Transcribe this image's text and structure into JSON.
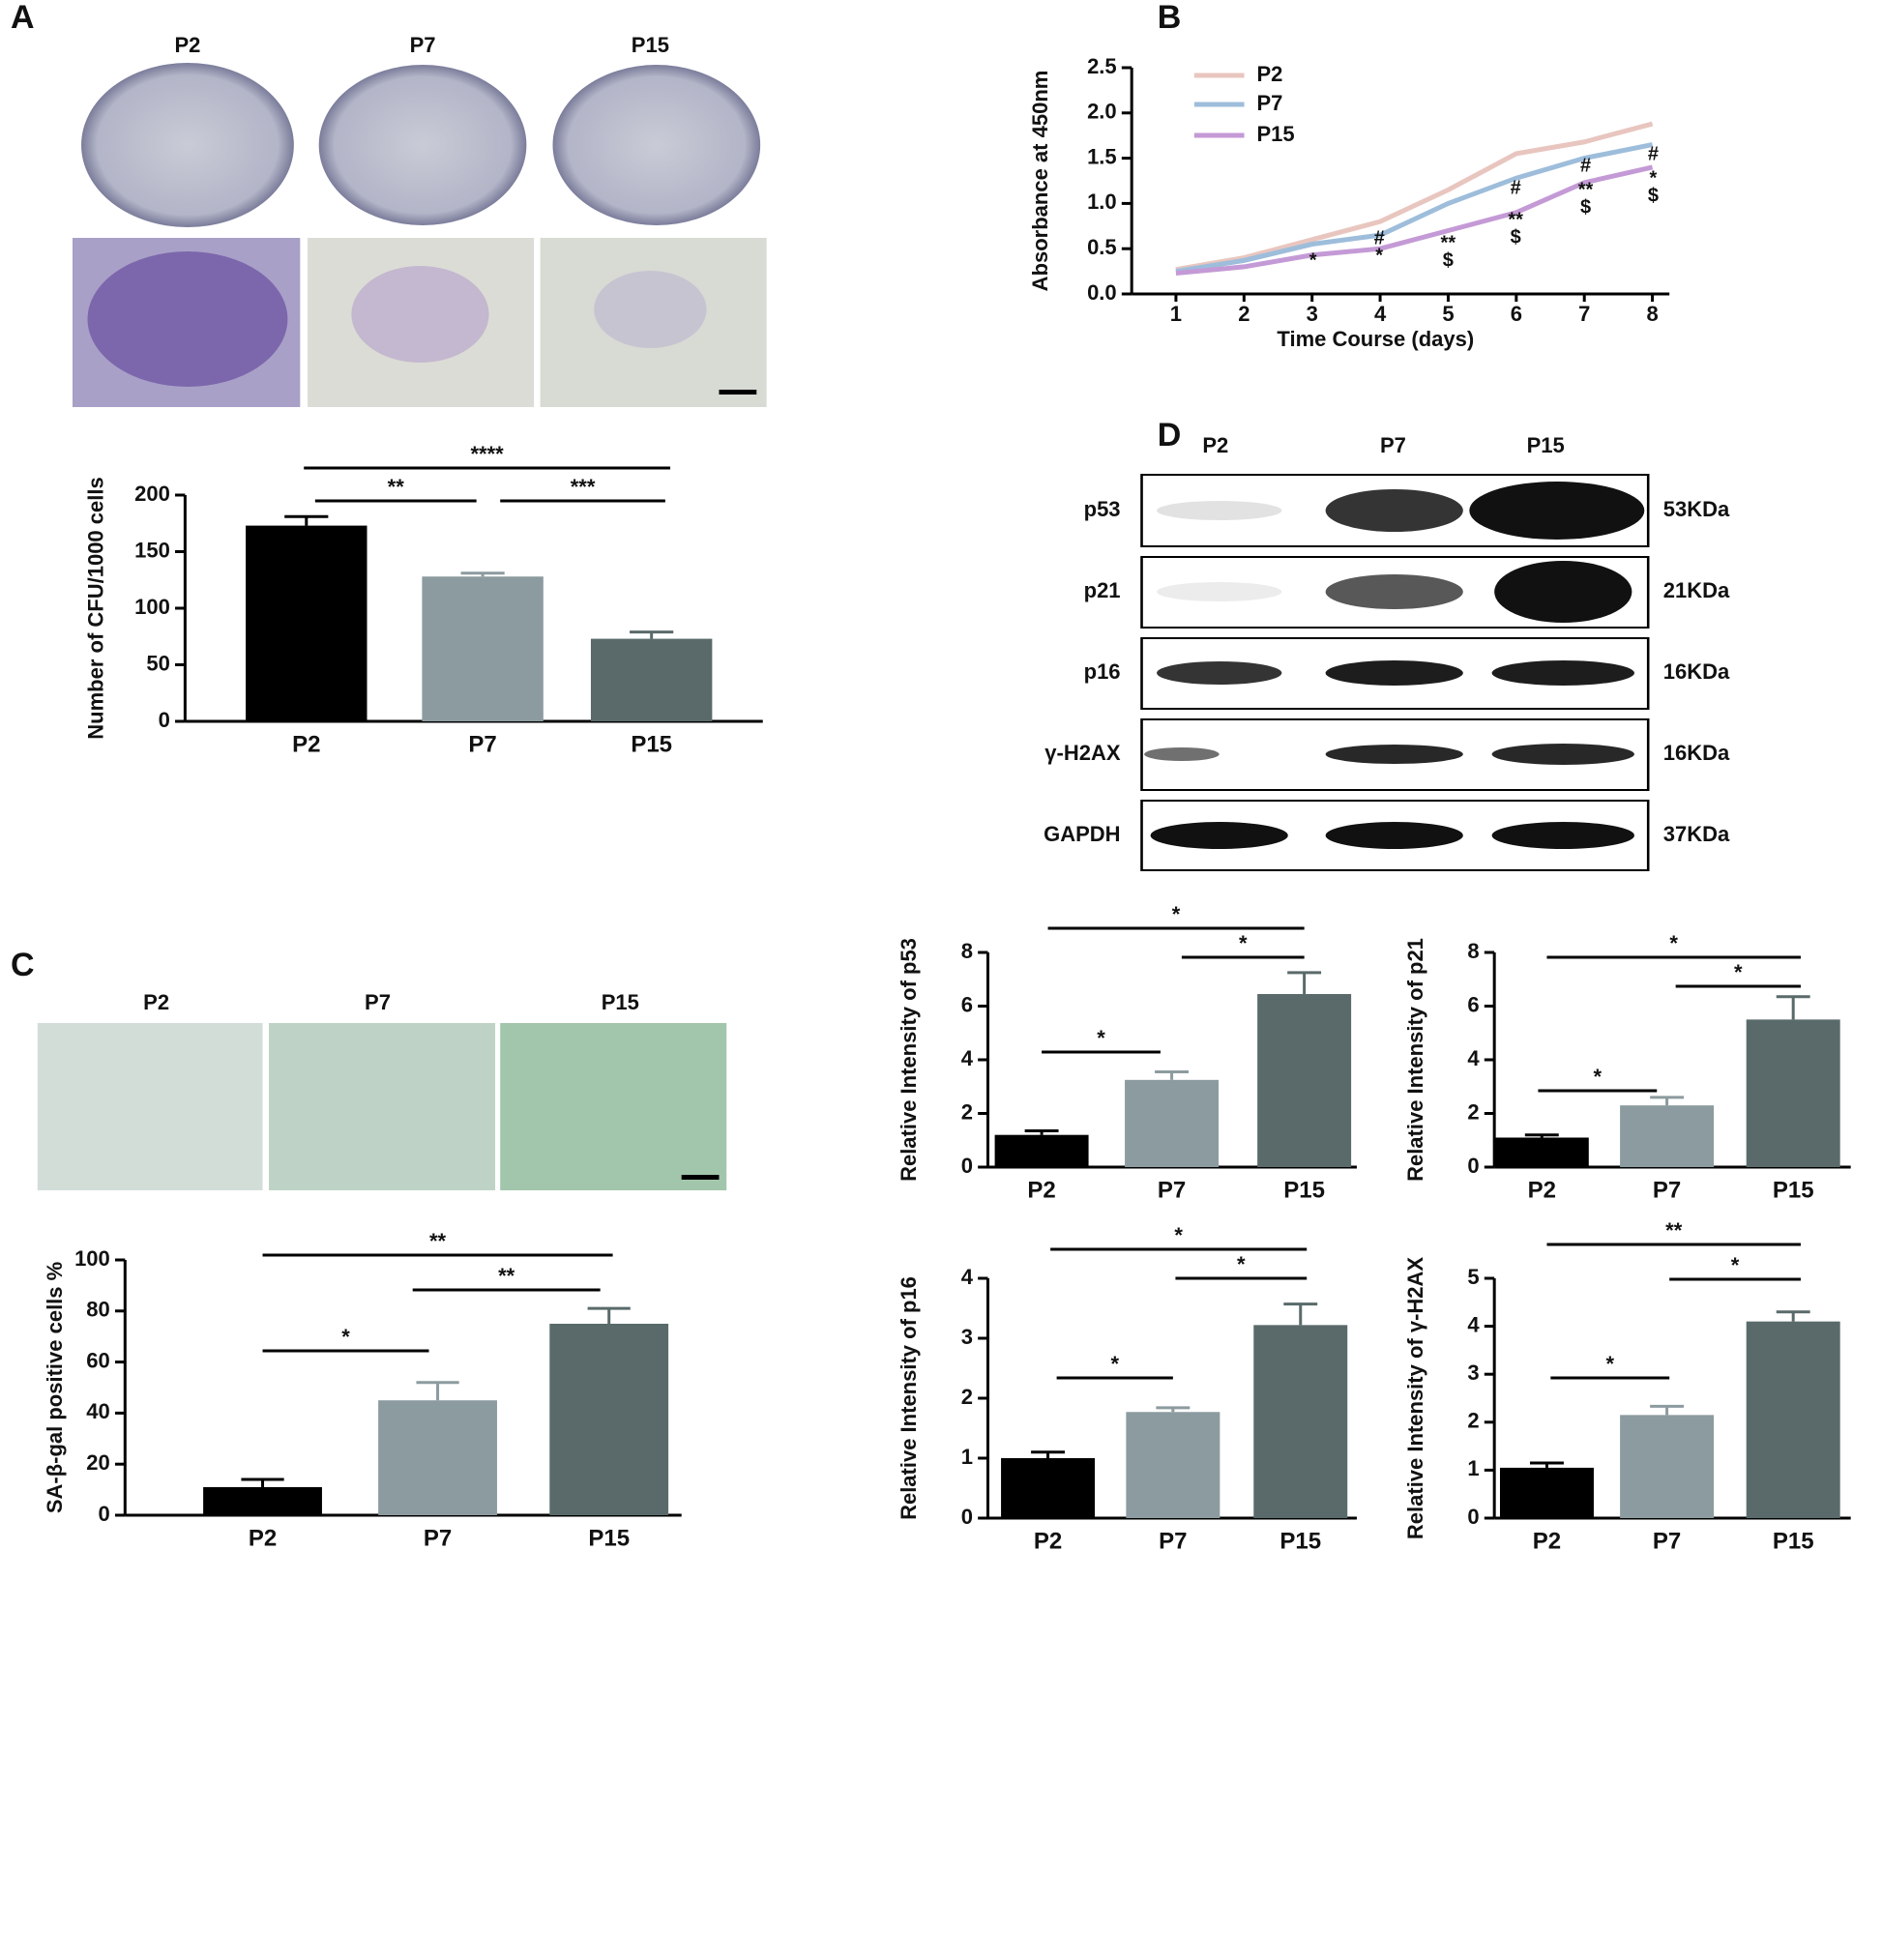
{
  "panel_labels": [
    "A",
    "B",
    "C",
    "D"
  ],
  "colony_images": {
    "labels": [
      "P2",
      "P7",
      "P15"
    ]
  },
  "sa_gal_images": {
    "labels": [
      "P2",
      "P7",
      "P15"
    ]
  },
  "western_blot": {
    "lanes": [
      "P2",
      "P7",
      "P15"
    ],
    "proteins": [
      {
        "name": "p53",
        "size": "53KDa"
      },
      {
        "name": "p21",
        "size": "21KDa"
      },
      {
        "name": "p16",
        "size": "16KDa"
      },
      {
        "name": "γ-H2AX",
        "size": "16KDa"
      },
      {
        "name": "GAPDH",
        "size": "37KDa"
      }
    ]
  },
  "chart_data": [
    {
      "type": "bar",
      "ylabel": "Number of CFU/1000 cells",
      "categories": [
        "P2",
        "P7",
        "P15"
      ],
      "values": [
        173,
        128,
        73
      ],
      "errors": [
        8,
        3,
        6
      ],
      "colors": [
        "#000000",
        "#8c9b9f",
        "#5a6a6a"
      ],
      "ylim": [
        0,
        200
      ],
      "yticks": [
        0,
        50,
        100,
        150,
        200
      ],
      "annotations": [
        "****",
        "**",
        "***"
      ]
    },
    {
      "type": "line",
      "xlabel": "Time Course (days)",
      "ylabel": "Absorbance at 450nm",
      "x": [
        1,
        2,
        3,
        4,
        5,
        6,
        7,
        8
      ],
      "xlim": [
        0.35,
        8.25
      ],
      "xticks": [
        1,
        2,
        3,
        4,
        5,
        6,
        7,
        8
      ],
      "ylim": [
        0,
        2.5
      ],
      "yticks": [
        {
          "value": 0,
          "label": "0.0"
        },
        0.5,
        {
          "value": 1,
          "label": "1.0"
        },
        1.5,
        {
          "value": 2,
          "label": "2.0"
        },
        2.5
      ],
      "series": [
        {
          "name": "P2",
          "color": "#e8c6bf",
          "values": [
            0.27,
            0.4,
            0.6,
            0.8,
            1.15,
            1.55,
            1.68,
            1.88
          ]
        },
        {
          "name": "P7",
          "color": "#9dbddb",
          "values": [
            0.25,
            0.37,
            0.55,
            0.65,
            1.0,
            1.28,
            1.5,
            1.65
          ]
        },
        {
          "name": "P15",
          "color": "#c49ad6",
          "values": [
            0.23,
            0.3,
            0.43,
            0.5,
            0.7,
            0.9,
            1.23,
            1.4
          ]
        }
      ],
      "annotations": [
        "*",
        "#",
        "*",
        "**",
        "$",
        "#",
        "**",
        "$",
        "#",
        "**",
        "$",
        "#",
        "*",
        "$"
      ]
    },
    {
      "type": "bar",
      "ylabel": "SA-β-gal positive cells %",
      "categories": [
        "P2",
        "P7",
        "P15"
      ],
      "values": [
        11,
        45,
        75
      ],
      "errors": [
        3,
        7,
        6
      ],
      "colors": [
        "#000000",
        "#8c9b9f",
        "#5a6a6a"
      ],
      "ylim": [
        0,
        100
      ],
      "yticks": [
        0,
        20,
        40,
        60,
        80,
        100
      ],
      "annotations": [
        "**",
        "**",
        "*"
      ]
    },
    {
      "type": "bar",
      "ylabel": "Relative Intensity of p53",
      "categories": [
        "P2",
        "P7",
        "P15"
      ],
      "values": [
        1.2,
        3.25,
        6.45
      ],
      "errors": [
        0.15,
        0.3,
        0.8
      ],
      "colors": [
        "#000000",
        "#8c9b9f",
        "#5a6a6a"
      ],
      "ylim": [
        0,
        8
      ],
      "yticks": [
        0,
        2,
        4,
        6,
        8
      ],
      "annotations": [
        "*",
        "*",
        "*"
      ]
    },
    {
      "type": "bar",
      "ylabel": "Relative Intensity of p21",
      "categories": [
        "P2",
        "P7",
        "P15"
      ],
      "values": [
        1.1,
        2.3,
        5.5
      ],
      "errors": [
        0.1,
        0.3,
        0.85
      ],
      "colors": [
        "#000000",
        "#8c9b9f",
        "#5a6a6a"
      ],
      "ylim": [
        0,
        8
      ],
      "yticks": [
        0,
        2,
        4,
        6,
        8
      ],
      "annotations": [
        "*",
        "*",
        "*"
      ]
    },
    {
      "type": "bar",
      "ylabel": "Relative Intensity of p16",
      "categories": [
        "P2",
        "P7",
        "P15"
      ],
      "values": [
        1.0,
        1.77,
        3.22
      ],
      "errors": [
        0.1,
        0.07,
        0.35
      ],
      "colors": [
        "#000000",
        "#8c9b9f",
        "#5a6a6a"
      ],
      "ylim": [
        0,
        4
      ],
      "yticks": [
        0,
        1,
        2,
        3,
        4
      ],
      "annotations": [
        "*",
        "*",
        "*"
      ]
    },
    {
      "type": "bar",
      "ylabel": "Relative Intensity of γ-H2AX",
      "categories": [
        "P2",
        "P7",
        "P15"
      ],
      "values": [
        1.05,
        2.15,
        4.1
      ],
      "errors": [
        0.1,
        0.18,
        0.2
      ],
      "colors": [
        "#000000",
        "#8c9b9f",
        "#5a6a6a"
      ],
      "ylim": [
        0,
        5
      ],
      "yticks": [
        0,
        1,
        2,
        3,
        4,
        5
      ],
      "annotations": [
        "**",
        "*",
        "*"
      ]
    }
  ]
}
